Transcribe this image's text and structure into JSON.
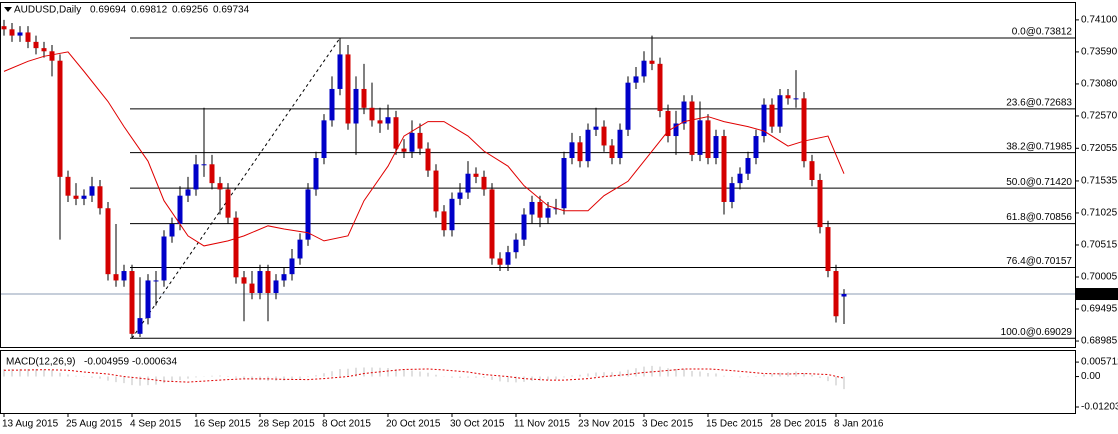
{
  "chart_data": {
    "type": "candlestick",
    "symbol": "AUDUSD,Daily",
    "categories": [
      "13 Aug 2015",
      null,
      null,
      null,
      null,
      null,
      null,
      null,
      "25 Aug 2015",
      null,
      null,
      null,
      null,
      null,
      null,
      null,
      "4 Sep 2015",
      null,
      null,
      null,
      null,
      null,
      null,
      null,
      "16 Sep 2015",
      null,
      null,
      null,
      null,
      null,
      null,
      null,
      "28 Sep 2015",
      null,
      null,
      null,
      null,
      null,
      null,
      null,
      "8 Oct 2015",
      null,
      null,
      null,
      null,
      null,
      null,
      null,
      "20 Oct 2015",
      null,
      null,
      null,
      null,
      null,
      null,
      null,
      "30 Oct 2015",
      null,
      null,
      null,
      null,
      null,
      null,
      null,
      "11 Nov 2015",
      null,
      null,
      null,
      null,
      null,
      null,
      null,
      "23 Nov 2015",
      null,
      null,
      null,
      null,
      null,
      null,
      null,
      "3 Dec 2015",
      null,
      null,
      null,
      null,
      null,
      null,
      null,
      "15 Dec 2015",
      null,
      null,
      null,
      null,
      null,
      null,
      null,
      "28 Dec 2015",
      null,
      null,
      null,
      null,
      null,
      null,
      null,
      "8 Jan 2016",
      null
    ],
    "open": [
      0.74,
      0.7395,
      0.7385,
      0.739,
      0.7375,
      0.7365,
      0.736,
      0.7345,
      0.716,
      0.713,
      0.7125,
      0.713,
      0.7145,
      0.711,
      0.7005,
      0.6995,
      0.701,
      0.691,
      0.6935,
      0.6995,
      0.6995,
      0.7065,
      0.7085,
      0.713,
      0.714,
      0.718,
      0.718,
      0.715,
      0.714,
      0.7095,
      0.7,
      0.699,
      0.6975,
      0.701,
      0.6975,
      0.6995,
      0.7005,
      0.703,
      0.706,
      0.714,
      0.719,
      0.725,
      0.73,
      0.7355,
      0.7245,
      0.73,
      0.727,
      0.725,
      0.7245,
      0.7255,
      0.7205,
      0.72,
      0.723,
      0.7205,
      0.717,
      0.7105,
      0.7075,
      0.7125,
      0.7135,
      0.7165,
      0.716,
      0.714,
      0.703,
      0.702,
      0.704,
      0.706,
      0.71,
      0.712,
      0.7095,
      0.711,
      0.711,
      0.719,
      0.7215,
      0.7185,
      0.7235,
      0.724,
      0.721,
      0.719,
      0.7235,
      0.731,
      0.732,
      0.7345,
      0.734,
      0.7265,
      0.7225,
      0.7245,
      0.728,
      0.7195,
      0.725,
      0.719,
      0.7225,
      0.712,
      0.715,
      0.7165,
      0.719,
      0.7225,
      0.7275,
      0.724,
      0.729,
      0.7285,
      0.7285,
      0.7185,
      0.7155,
      0.708,
      0.701,
      0.69694
    ],
    "high": [
      0.741,
      0.7405,
      0.74,
      0.74,
      0.7385,
      0.7375,
      0.737,
      0.7355,
      0.717,
      0.715,
      0.714,
      0.716,
      0.7155,
      0.712,
      0.7085,
      0.702,
      0.702,
      0.7,
      0.7005,
      0.701,
      0.7075,
      0.7095,
      0.7145,
      0.716,
      0.7195,
      0.727,
      0.7195,
      0.716,
      0.715,
      0.7105,
      0.701,
      0.701,
      0.702,
      0.702,
      0.7005,
      0.7015,
      0.7045,
      0.707,
      0.715,
      0.72,
      0.726,
      0.732,
      0.7381,
      0.737,
      0.732,
      0.734,
      0.731,
      0.727,
      0.7275,
      0.7265,
      0.722,
      0.725,
      0.7245,
      0.7215,
      0.718,
      0.7115,
      0.7135,
      0.715,
      0.7185,
      0.7175,
      0.717,
      0.715,
      0.704,
      0.705,
      0.707,
      0.711,
      0.713,
      0.713,
      0.712,
      0.7125,
      0.72,
      0.723,
      0.7225,
      0.7245,
      0.727,
      0.725,
      0.722,
      0.7245,
      0.732,
      0.7335,
      0.736,
      0.7385,
      0.735,
      0.7275,
      0.7265,
      0.729,
      0.729,
      0.728,
      0.726,
      0.7235,
      0.7235,
      0.716,
      0.7175,
      0.72,
      0.7235,
      0.7285,
      0.7285,
      0.73,
      0.73,
      0.733,
      0.7295,
      0.7195,
      0.7165,
      0.709,
      0.702,
      0.69812
    ],
    "low": [
      0.7385,
      0.7375,
      0.7375,
      0.7365,
      0.7355,
      0.735,
      0.732,
      0.706,
      0.712,
      0.7115,
      0.7115,
      0.712,
      0.71,
      0.6995,
      0.6985,
      0.6985,
      0.6903,
      0.6905,
      0.6925,
      0.6955,
      0.6985,
      0.7055,
      0.7075,
      0.712,
      0.713,
      0.716,
      0.714,
      0.71,
      0.7085,
      0.699,
      0.693,
      0.6965,
      0.6965,
      0.693,
      0.6965,
      0.6985,
      0.6995,
      0.702,
      0.705,
      0.713,
      0.718,
      0.724,
      0.729,
      0.7235,
      0.7195,
      0.726,
      0.724,
      0.723,
      0.7235,
      0.7195,
      0.719,
      0.719,
      0.7195,
      0.716,
      0.7095,
      0.7065,
      0.7065,
      0.7115,
      0.7125,
      0.715,
      0.713,
      0.702,
      0.701,
      0.701,
      0.703,
      0.705,
      0.7085,
      0.708,
      0.7085,
      0.71,
      0.71,
      0.718,
      0.7175,
      0.7175,
      0.7225,
      0.72,
      0.718,
      0.718,
      0.7225,
      0.73,
      0.731,
      0.733,
      0.7255,
      0.7215,
      0.7195,
      0.7235,
      0.7185,
      0.7185,
      0.718,
      0.718,
      0.71,
      0.711,
      0.714,
      0.7155,
      0.718,
      0.7215,
      0.723,
      0.723,
      0.7275,
      0.727,
      0.7175,
      0.7145,
      0.707,
      0.7,
      0.6928,
      0.69256
    ],
    "close": [
      0.7395,
      0.7385,
      0.739,
      0.7375,
      0.7365,
      0.736,
      0.7345,
      0.716,
      0.713,
      0.7125,
      0.713,
      0.7145,
      0.711,
      0.7005,
      0.6995,
      0.701,
      0.691,
      0.6935,
      0.6995,
      0.6995,
      0.7065,
      0.7085,
      0.713,
      0.714,
      0.718,
      0.718,
      0.715,
      0.714,
      0.7095,
      0.7,
      0.699,
      0.6975,
      0.701,
      0.6975,
      0.6995,
      0.7005,
      0.703,
      0.706,
      0.714,
      0.719,
      0.725,
      0.73,
      0.7355,
      0.7245,
      0.73,
      0.727,
      0.725,
      0.7245,
      0.7255,
      0.7205,
      0.72,
      0.723,
      0.7205,
      0.717,
      0.7105,
      0.7075,
      0.7125,
      0.7135,
      0.7165,
      0.716,
      0.714,
      0.703,
      0.702,
      0.704,
      0.706,
      0.71,
      0.712,
      0.7095,
      0.711,
      0.711,
      0.719,
      0.7215,
      0.7185,
      0.7235,
      0.724,
      0.721,
      0.719,
      0.7235,
      0.731,
      0.732,
      0.7345,
      0.734,
      0.7265,
      0.7225,
      0.7245,
      0.728,
      0.7195,
      0.725,
      0.719,
      0.7225,
      0.712,
      0.715,
      0.7165,
      0.719,
      0.7225,
      0.7275,
      0.724,
      0.729,
      0.7285,
      0.7285,
      0.7185,
      0.7155,
      0.708,
      0.701,
      0.6938,
      0.69734
    ],
    "up_color": "#0000c8",
    "down_color": "#d40000",
    "ylim": [
      0.6889,
      0.74385
    ],
    "yticks": [
      {
        "value": 0.741,
        "label": "0.74100"
      },
      {
        "value": 0.7359,
        "label": "0.73590"
      },
      {
        "value": 0.7308,
        "label": "0.73080"
      },
      {
        "value": 0.7257,
        "label": "0.72570"
      },
      {
        "value": 0.72055,
        "label": "0.72055"
      },
      {
        "value": 0.71535,
        "label": "0.71535"
      },
      {
        "value": 0.71025,
        "label": "0.71025"
      },
      {
        "value": 0.70515,
        "label": "0.70515"
      },
      {
        "value": 0.70005,
        "label": "0.70005"
      },
      {
        "value": 0.69495,
        "label": "0.69495"
      },
      {
        "value": 0.68985,
        "label": "0.68985"
      }
    ],
    "current_price_color": "#8c9cb4",
    "ma": {
      "color": "#e00000",
      "x": [
        0,
        3,
        5,
        8,
        10,
        13,
        15,
        18,
        20,
        23,
        25,
        28,
        30,
        33,
        35,
        38,
        40,
        43,
        45,
        48,
        50,
        53,
        55,
        58,
        60,
        63,
        65,
        68,
        70,
        73,
        75,
        78,
        80,
        83,
        85,
        88,
        90,
        93,
        95,
        98,
        100,
        103,
        105
      ],
      "values": [
        0.7328,
        0.7344,
        0.7352,
        0.7359,
        0.7328,
        0.728,
        0.724,
        0.7185,
        0.7122,
        0.7066,
        0.705,
        0.7058,
        0.7066,
        0.7082,
        0.7077,
        0.7071,
        0.7058,
        0.7066,
        0.7122,
        0.7177,
        0.7225,
        0.7248,
        0.7248,
        0.7225,
        0.7201,
        0.7177,
        0.7146,
        0.7114,
        0.7106,
        0.7106,
        0.713,
        0.7153,
        0.7185,
        0.7233,
        0.7248,
        0.7256,
        0.7248,
        0.724,
        0.7233,
        0.7209,
        0.7217,
        0.7225,
        0.7165
      ]
    },
    "fib_color": "#000000",
    "fib_levels": [
      {
        "label": "0.0@0.73812",
        "value": 0.73812
      },
      {
        "label": "23.6@0.72683",
        "value": 0.72683
      },
      {
        "label": "38.2@0.71985",
        "value": 0.71985
      },
      {
        "label": "50.0@0.71420",
        "value": 0.7142
      },
      {
        "label": "61.8@0.70856",
        "value": 0.70856
      },
      {
        "label": "76.4@0.70157",
        "value": 0.70157
      },
      {
        "label": "100.0@0.69029",
        "value": 0.69029
      }
    ],
    "macd": {
      "title": "MACD(12,26,9)",
      "ylim": [
        -0.014,
        0.0097
      ],
      "yticks": [
        0.005712,
        {
          "value": 0,
          "label": "0.00"
        },
        -0.01203
      ],
      "main": {
        "color": "#c0c0c0",
        "values": [
          0.003,
          0.003,
          0.003,
          0.003,
          0.003,
          0.0028,
          0.0026,
          0.0015,
          0.0008,
          0.0003,
          -0.0001,
          -0.0004,
          -0.0008,
          -0.0016,
          -0.0022,
          -0.0026,
          -0.0034,
          -0.0036,
          -0.0034,
          -0.0032,
          -0.0026,
          -0.002,
          -0.0014,
          -0.0008,
          -0.0003,
          0.0001,
          0.0003,
          0.0004,
          0.0002,
          -0.0004,
          -0.0009,
          -0.0013,
          -0.0014,
          -0.0017,
          -0.0017,
          -0.0016,
          -0.0013,
          -0.0009,
          -0.0002,
          0.0005,
          0.0013,
          0.0021,
          0.003,
          0.0031,
          0.0035,
          0.0036,
          0.0036,
          0.0035,
          0.0034,
          0.003,
          0.0026,
          0.0024,
          0.002,
          0.0015,
          0.0007,
          -0.0001,
          -0.0004,
          -0.0005,
          -0.0004,
          -0.0004,
          -0.0005,
          -0.0013,
          -0.0019,
          -0.0022,
          -0.0023,
          -0.0021,
          -0.0017,
          -0.0016,
          -0.0013,
          -0.0011,
          -0.0003,
          0.0004,
          0.0007,
          0.0012,
          0.0016,
          0.0017,
          0.0017,
          0.002,
          0.0027,
          0.0033,
          0.0039,
          0.0042,
          0.0039,
          0.0033,
          0.003,
          0.003,
          0.0022,
          0.002,
          0.0014,
          0.0012,
          0.0003,
          -0.0001,
          -0.0003,
          -0.0002,
          0.0002,
          0.0008,
          0.001,
          0.0015,
          0.0018,
          0.002,
          0.0013,
          0.0006,
          -0.0005,
          -0.0018,
          -0.0035,
          -0.004959
        ]
      },
      "signal": {
        "color": "#e00000",
        "x": [
          0,
          3,
          5,
          8,
          10,
          13,
          15,
          18,
          20,
          23,
          25,
          28,
          30,
          33,
          35,
          38,
          40,
          43,
          45,
          48,
          50,
          53,
          55,
          58,
          60,
          63,
          65,
          68,
          70,
          73,
          75,
          78,
          80,
          83,
          85,
          88,
          90,
          93,
          95,
          98,
          100,
          103,
          105
        ],
        "values": [
          0.0025,
          0.0026,
          0.0027,
          0.0025,
          0.0018,
          0.001,
          0.0,
          -0.001,
          -0.0018,
          -0.0022,
          -0.0018,
          -0.0012,
          -0.0009,
          -0.0009,
          -0.0011,
          -0.0012,
          -0.0008,
          0.0,
          0.0012,
          0.0022,
          0.0028,
          0.003,
          0.0026,
          0.0018,
          0.0008,
          0.0,
          -0.0008,
          -0.0014,
          -0.0014,
          -0.0008,
          0.0,
          0.0008,
          0.0016,
          0.0024,
          0.003,
          0.003,
          0.0026,
          0.0018,
          0.0012,
          0.001,
          0.0012,
          0.0008,
          -0.000634
        ]
      }
    }
  }
}
